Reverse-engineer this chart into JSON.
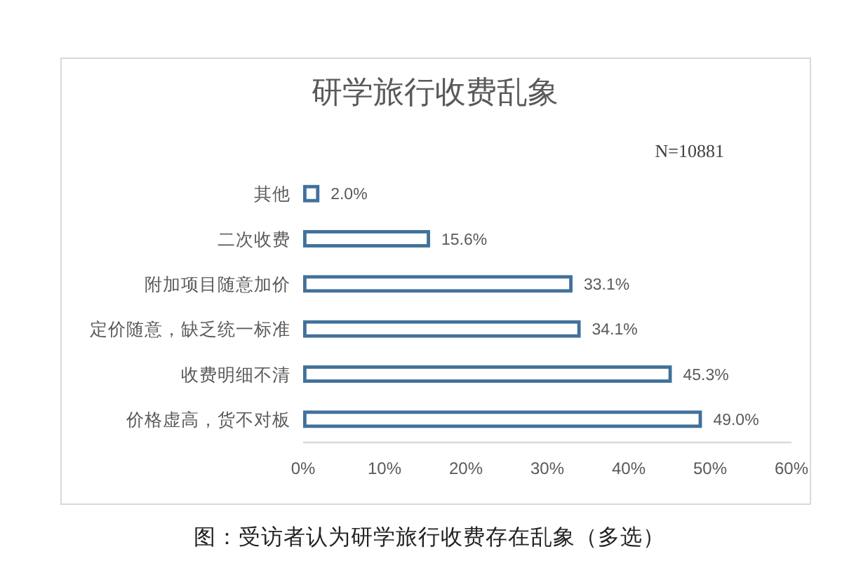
{
  "chart_data": {
    "type": "bar",
    "orientation": "horizontal",
    "title": "研学旅行收费乱象",
    "subtitle": "N=10881",
    "categories": [
      "其他",
      "二次收费",
      "附加项目随意加价",
      "定价随意，缺乏统一标准",
      "收费明细不清",
      "价格虚高，货不对板"
    ],
    "values": [
      2.0,
      15.6,
      33.1,
      34.1,
      45.3,
      49.0
    ],
    "color": "#41719c",
    "value_labels": [
      "2.0%",
      "15.6%",
      "33.1%",
      "34.1%",
      "45.3%",
      "49.0%"
    ],
    "xlim": [
      0,
      60
    ],
    "xticks": [
      {
        "value": 0,
        "label": "0%"
      },
      {
        "value": 10,
        "label": "10%"
      },
      {
        "value": 20,
        "label": "20%"
      },
      {
        "value": 30,
        "label": "30%"
      },
      {
        "value": 40,
        "label": "40%"
      },
      {
        "value": 50,
        "label": "50%"
      },
      {
        "value": 60,
        "label": "60%"
      }
    ],
    "annotations": [
      "图：受访者认为研学旅行收费存在乱象（多选）"
    ]
  }
}
